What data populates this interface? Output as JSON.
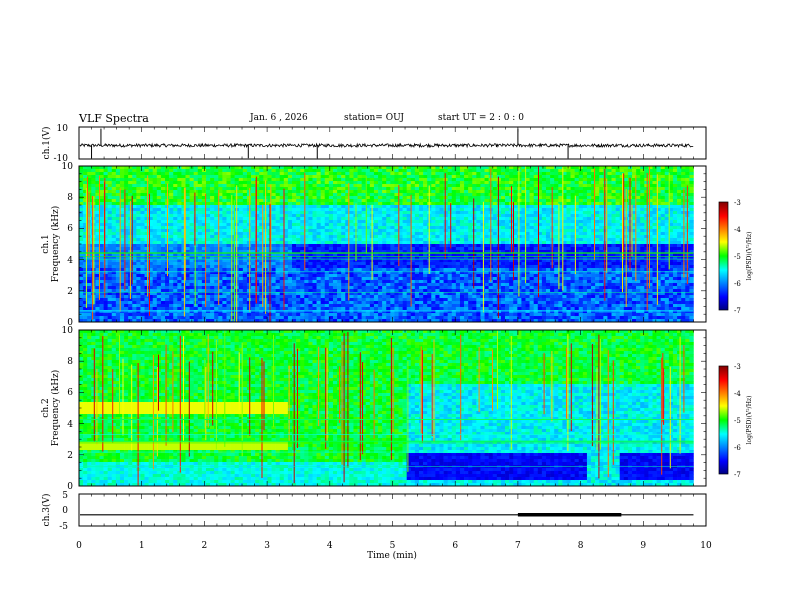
{
  "header": {
    "title": "VLF Spectra",
    "date": "Jan. 6 , 2026",
    "station": "station= OUJ",
    "start": "start UT = 2 : 0 : 0"
  },
  "chart_data": [
    {
      "type": "line",
      "name": "ch.1 waveform",
      "ylabel": "ch.1(V)",
      "ylim": [
        -10,
        10
      ],
      "yticks": [
        "10",
        "-10"
      ],
      "xlim": [
        0,
        10
      ],
      "baseline": -1.5,
      "spike_times": [
        0.2,
        0.35,
        2.7,
        3.8,
        7.0,
        7.8
      ]
    },
    {
      "type": "heatmap",
      "name": "ch.1 spectrogram",
      "ylabel": "ch.1\nFrequency (kHz)",
      "ylabel_line1": "ch.1",
      "ylabel_line2": "Frequency (kHz)",
      "ylim": [
        0,
        10
      ],
      "yticks": [
        "0",
        "2",
        "4",
        "6",
        "8",
        "10"
      ],
      "xlim": [
        0,
        10
      ],
      "data_end": 9.8
    },
    {
      "type": "heatmap",
      "name": "ch.2 spectrogram",
      "ylabel_line1": "ch.2",
      "ylabel_line2": "Frequency (kHz)",
      "ylim": [
        0,
        10
      ],
      "yticks": [
        "0",
        "2",
        "4",
        "6",
        "8",
        "10"
      ],
      "xlim": [
        0,
        10
      ],
      "data_end": 9.8
    },
    {
      "type": "line",
      "name": "ch.3 signal",
      "ylabel": "ch.3(V)",
      "ylim": [
        -5,
        5
      ],
      "yticks": [
        "5",
        "0",
        "-5"
      ],
      "xlim": [
        0,
        10
      ],
      "level": -1.5,
      "thick_segment": [
        7.0,
        8.65
      ],
      "xlabel": "Time (min)",
      "xticks": [
        "0",
        "1",
        "2",
        "3",
        "4",
        "5",
        "6",
        "7",
        "8",
        "9",
        "10"
      ]
    }
  ],
  "colorbar": {
    "label": "log(PSD)(V²/Hz)",
    "ticks": [
      "-3",
      "-4",
      "-5",
      "-6",
      "-7"
    ],
    "range": [
      -7,
      -3
    ]
  },
  "colors": {
    "low": "#000080",
    "mid": "#00ffff",
    "high": "#800000"
  }
}
